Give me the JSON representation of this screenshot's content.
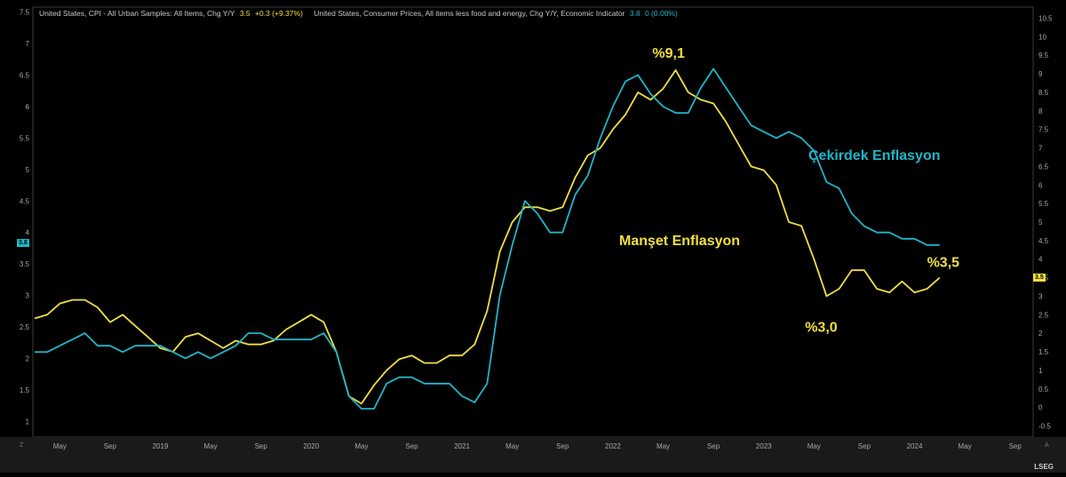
{
  "chart_data": {
    "type": "line",
    "legend": {
      "cpi": {
        "name": "United States, CPI - All Urban Samples: All Items, Chg Y/Y",
        "value": "3.5",
        "change": "+0.3 (+9.37%)"
      },
      "core": {
        "name": "United States, Consumer Prices, All items less food and energy, Chg Y/Y, Economic Indicator",
        "value": "3.8",
        "change": "0 (0.00%)"
      }
    },
    "x_tick_labels": [
      "May",
      "Sep",
      "2019",
      "May",
      "Sep",
      "2020",
      "May",
      "Sep",
      "2021",
      "May",
      "Sep",
      "2022",
      "May",
      "Sep",
      "2023",
      "May",
      "Sep",
      "2024",
      "May",
      "Sep"
    ],
    "left_axis": {
      "ticks": [
        "1",
        "1.5",
        "2",
        "2.5",
        "3",
        "3.5",
        "4",
        "4.5",
        "5",
        "5.5",
        "6",
        "6.5",
        "7",
        "7.5"
      ],
      "min": 0.75,
      "max": 7.58
    },
    "right_axis": {
      "ticks": [
        "-0.5",
        "0",
        "0.5",
        "1",
        "1.5",
        "2",
        "2.5",
        "3",
        "3.5",
        "4",
        "4.5",
        "5",
        "5.5",
        "6",
        "6.5",
        "7",
        "7.5",
        "8",
        "8.5",
        "9",
        "9.5",
        "10",
        "10.5"
      ],
      "min": -0.8,
      "max": 10.8
    },
    "badges": {
      "left": "3.8",
      "right": "3.5"
    },
    "series": [
      {
        "name": "CPI",
        "color": "#f0e040",
        "axis": "right",
        "start": "2018-03",
        "values": [
          2.4,
          2.5,
          2.8,
          2.9,
          2.9,
          2.7,
          2.3,
          2.5,
          2.2,
          1.9,
          1.6,
          1.5,
          1.9,
          2.0,
          1.8,
          1.6,
          1.8,
          1.7,
          1.7,
          1.8,
          2.1,
          2.3,
          2.5,
          2.3,
          1.5,
          0.3,
          0.1,
          0.6,
          1.0,
          1.3,
          1.4,
          1.2,
          1.2,
          1.4,
          1.4,
          1.7,
          2.6,
          4.2,
          5.0,
          5.4,
          5.4,
          5.3,
          5.4,
          6.2,
          6.8,
          7.0,
          7.5,
          7.9,
          8.5,
          8.3,
          8.6,
          9.1,
          8.5,
          8.3,
          8.2,
          7.7,
          7.1,
          6.5,
          6.4,
          6.0,
          5.0,
          4.9,
          4.0,
          3.0,
          3.2,
          3.7,
          3.7,
          3.2,
          3.1,
          3.4,
          3.1,
          3.2,
          3.5
        ],
        "labels": [
          {
            "text": "%9,1",
            "color": "#f0e040"
          },
          {
            "text": "%3,0",
            "color": "#f0e040"
          },
          {
            "text": "%3,5",
            "color": "#f0e040"
          },
          {
            "text": "Manşet Enflasyon",
            "color": "#f0e040"
          }
        ]
      },
      {
        "name": "Core CPI",
        "color": "#1fb6c8",
        "axis": "left",
        "start": "2018-03",
        "values": [
          2.1,
          2.1,
          2.2,
          2.3,
          2.4,
          2.2,
          2.2,
          2.1,
          2.2,
          2.2,
          2.2,
          2.1,
          2.0,
          2.1,
          2.0,
          2.1,
          2.2,
          2.4,
          2.4,
          2.3,
          2.3,
          2.3,
          2.3,
          2.4,
          2.1,
          1.4,
          1.2,
          1.2,
          1.6,
          1.7,
          1.7,
          1.6,
          1.6,
          1.6,
          1.4,
          1.3,
          1.6,
          3.0,
          3.8,
          4.5,
          4.3,
          4.0,
          4.0,
          4.6,
          4.9,
          5.5,
          6.0,
          6.4,
          6.5,
          6.2,
          6.0,
          5.9,
          5.9,
          6.3,
          6.6,
          6.3,
          6.0,
          5.7,
          5.6,
          5.5,
          5.6,
          5.5,
          5.3,
          4.8,
          4.7,
          4.3,
          4.1,
          4.0,
          4.0,
          3.9,
          3.9,
          3.8,
          3.8
        ],
        "labels": [
          {
            "text": "Çekirdek Enflasyon",
            "color": "#1fb6c8"
          }
        ]
      }
    ],
    "annotations": [
      {
        "text": "%9,1",
        "series": 0,
        "index": 51,
        "color": "#f0e040"
      },
      {
        "text": "%3,0",
        "series": 0,
        "index": 63,
        "color": "#f0e040"
      },
      {
        "text": "%3,5",
        "series": 0,
        "index": 72,
        "color": "#f0e040"
      },
      {
        "text": "Manşet Enflasyon",
        "color": "#f0e040"
      },
      {
        "text": "Çekirdek Enflasyon",
        "color": "#1fb6c8"
      }
    ],
    "grid": false
  },
  "footer": {
    "brand": "LSEG",
    "corner_left": "Z",
    "corner_right": "A"
  }
}
